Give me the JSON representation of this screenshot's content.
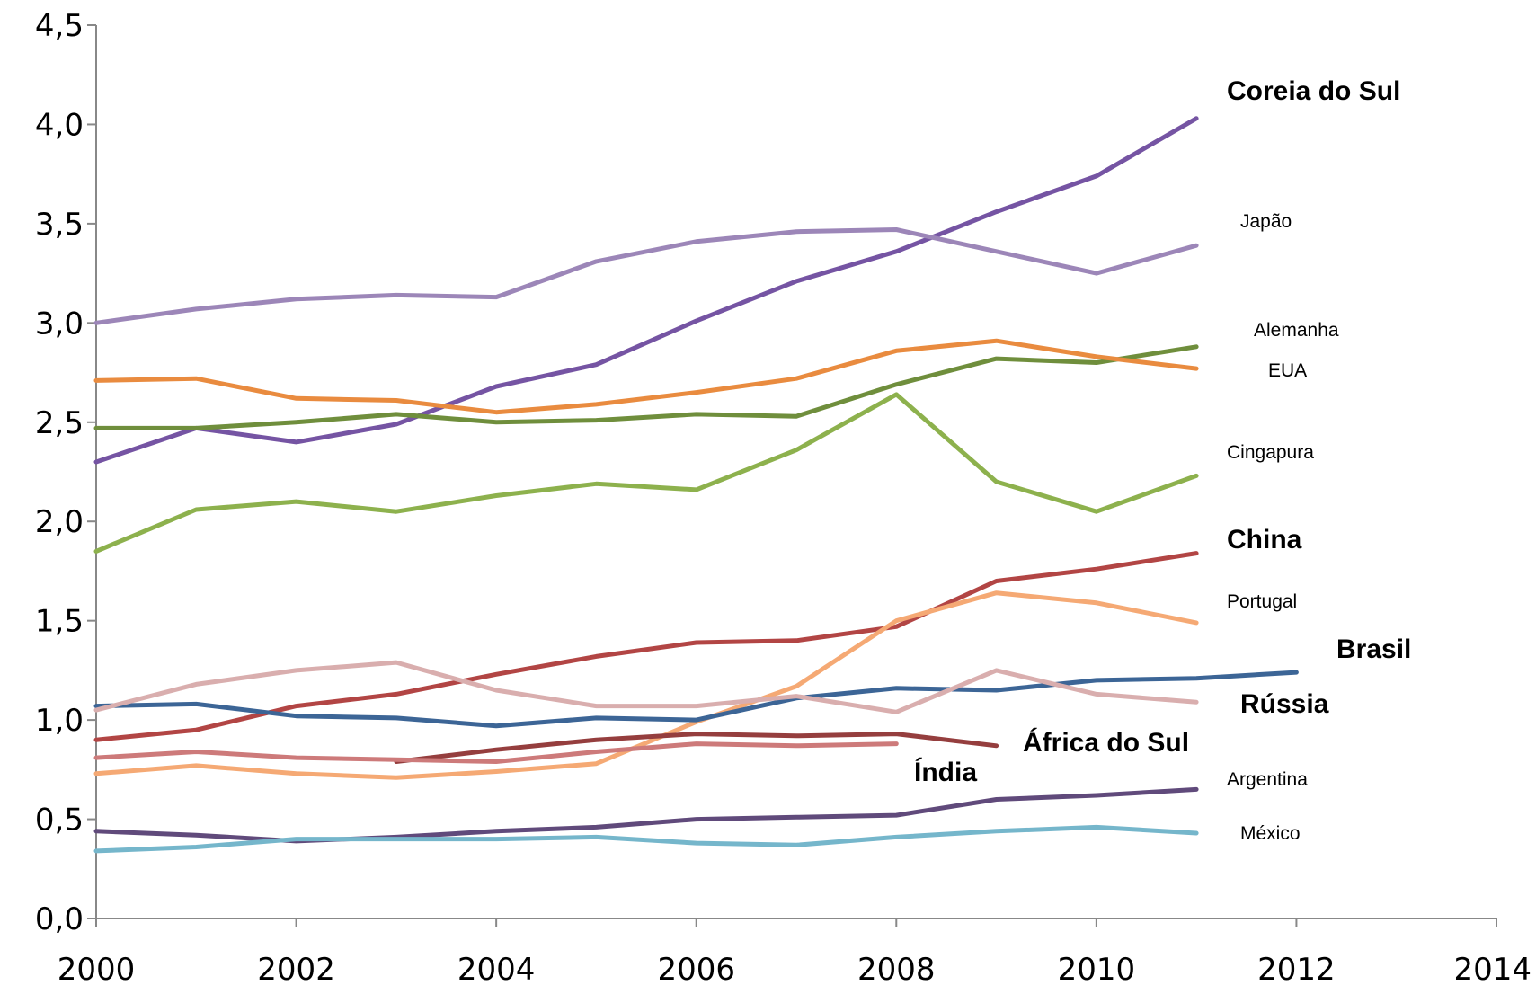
{
  "chart_data": {
    "type": "line",
    "title": "",
    "xlabel": "",
    "ylabel": "",
    "xlim": [
      2000,
      2014
    ],
    "ylim": [
      0,
      4.5
    ],
    "x_ticks": [
      "2000",
      "2002",
      "2004",
      "2006",
      "2008",
      "2010",
      "2012",
      "2014"
    ],
    "y_ticks": [
      "0,0",
      "0,5",
      "1,0",
      "1,5",
      "2,0",
      "2,5",
      "3,0",
      "3,5",
      "4,0",
      "4,5"
    ],
    "grid": false,
    "legend": "inline labels at line ends",
    "series": [
      {
        "name": "Coreia do Sul",
        "color": "#7554A3",
        "label_bold": true,
        "x": [
          2000,
          2001,
          2002,
          2003,
          2004,
          2005,
          2006,
          2007,
          2008,
          2009,
          2010,
          2011
        ],
        "values": [
          2.3,
          2.47,
          2.4,
          2.49,
          2.68,
          2.79,
          3.01,
          3.21,
          3.36,
          3.56,
          3.74,
          4.03
        ]
      },
      {
        "name": "Japão",
        "color": "#9C86B8",
        "label_bold": false,
        "x": [
          2000,
          2001,
          2002,
          2003,
          2004,
          2005,
          2006,
          2007,
          2008,
          2009,
          2010,
          2011
        ],
        "values": [
          3.0,
          3.07,
          3.12,
          3.14,
          3.13,
          3.31,
          3.41,
          3.46,
          3.47,
          3.36,
          3.25,
          3.39
        ]
      },
      {
        "name": "Alemanha",
        "color": "#6F8E3C",
        "label_bold": false,
        "x": [
          2000,
          2001,
          2002,
          2003,
          2004,
          2005,
          2006,
          2007,
          2008,
          2009,
          2010,
          2011
        ],
        "values": [
          2.47,
          2.47,
          2.5,
          2.54,
          2.5,
          2.51,
          2.54,
          2.53,
          2.69,
          2.82,
          2.8,
          2.88
        ]
      },
      {
        "name": "EUA",
        "color": "#E98B3F",
        "label_bold": false,
        "x": [
          2000,
          2001,
          2002,
          2003,
          2004,
          2005,
          2006,
          2007,
          2008,
          2009,
          2010,
          2011
        ],
        "values": [
          2.71,
          2.72,
          2.62,
          2.61,
          2.55,
          2.59,
          2.65,
          2.72,
          2.86,
          2.91,
          2.83,
          2.77
        ]
      },
      {
        "name": "Cingapura",
        "color": "#8DB14D",
        "label_bold": false,
        "x": [
          2000,
          2001,
          2002,
          2003,
          2004,
          2005,
          2006,
          2007,
          2008,
          2009,
          2010,
          2011
        ],
        "values": [
          1.85,
          2.06,
          2.1,
          2.05,
          2.13,
          2.19,
          2.16,
          2.36,
          2.64,
          2.2,
          2.05,
          2.23
        ]
      },
      {
        "name": "China",
        "color": "#B24544",
        "label_bold": true,
        "x": [
          2000,
          2001,
          2002,
          2003,
          2004,
          2005,
          2006,
          2007,
          2008,
          2009,
          2010,
          2011
        ],
        "values": [
          0.9,
          0.95,
          1.07,
          1.13,
          1.23,
          1.32,
          1.39,
          1.4,
          1.47,
          1.7,
          1.76,
          1.84
        ]
      },
      {
        "name": "Portugal",
        "color": "#F5A974",
        "label_bold": false,
        "x": [
          2000,
          2001,
          2002,
          2003,
          2004,
          2005,
          2006,
          2007,
          2008,
          2009,
          2010,
          2011
        ],
        "values": [
          0.73,
          0.77,
          0.73,
          0.71,
          0.74,
          0.78,
          0.99,
          1.17,
          1.5,
          1.64,
          1.59,
          1.49
        ]
      },
      {
        "name": "Brasil",
        "color": "#3C6596",
        "label_bold": true,
        "x": [
          2000,
          2001,
          2002,
          2003,
          2004,
          2005,
          2006,
          2007,
          2008,
          2009,
          2010,
          2011,
          2012
        ],
        "values": [
          1.07,
          1.08,
          1.02,
          1.01,
          0.97,
          1.01,
          1.0,
          1.11,
          1.16,
          1.15,
          1.2,
          1.21,
          1.24
        ]
      },
      {
        "name": "Rússia",
        "color": "#D9AEAE",
        "label_bold": true,
        "x": [
          2000,
          2001,
          2002,
          2003,
          2004,
          2005,
          2006,
          2007,
          2008,
          2009,
          2010,
          2011
        ],
        "values": [
          1.05,
          1.18,
          1.25,
          1.29,
          1.15,
          1.07,
          1.07,
          1.12,
          1.04,
          1.25,
          1.13,
          1.09
        ]
      },
      {
        "name": "África do Sul",
        "color": "#953E3E",
        "label_bold": true,
        "x": [
          2003,
          2004,
          2005,
          2006,
          2007,
          2008,
          2009
        ],
        "values": [
          0.79,
          0.85,
          0.9,
          0.93,
          0.92,
          0.93,
          0.87
        ]
      },
      {
        "name": "Índia",
        "color": "#CD7A7A",
        "label_bold": true,
        "x": [
          2000,
          2001,
          2002,
          2003,
          2004,
          2005,
          2006,
          2007,
          2008
        ],
        "values": [
          0.81,
          0.84,
          0.81,
          0.8,
          0.79,
          0.84,
          0.88,
          0.87,
          0.88
        ]
      },
      {
        "name": "Argentina",
        "color": "#604A7B",
        "label_bold": false,
        "x": [
          2000,
          2001,
          2002,
          2003,
          2004,
          2005,
          2006,
          2007,
          2008,
          2009,
          2010,
          2011
        ],
        "values": [
          0.44,
          0.42,
          0.39,
          0.41,
          0.44,
          0.46,
          0.5,
          0.51,
          0.52,
          0.6,
          0.62,
          0.65
        ]
      },
      {
        "name": "México",
        "color": "#75B6CB",
        "label_bold": false,
        "x": [
          2000,
          2001,
          2002,
          2003,
          2004,
          2005,
          2006,
          2007,
          2008,
          2009,
          2010,
          2011
        ],
        "values": [
          0.34,
          0.36,
          0.4,
          0.4,
          0.4,
          0.41,
          0.38,
          0.37,
          0.41,
          0.44,
          0.46,
          0.43
        ]
      }
    ]
  }
}
